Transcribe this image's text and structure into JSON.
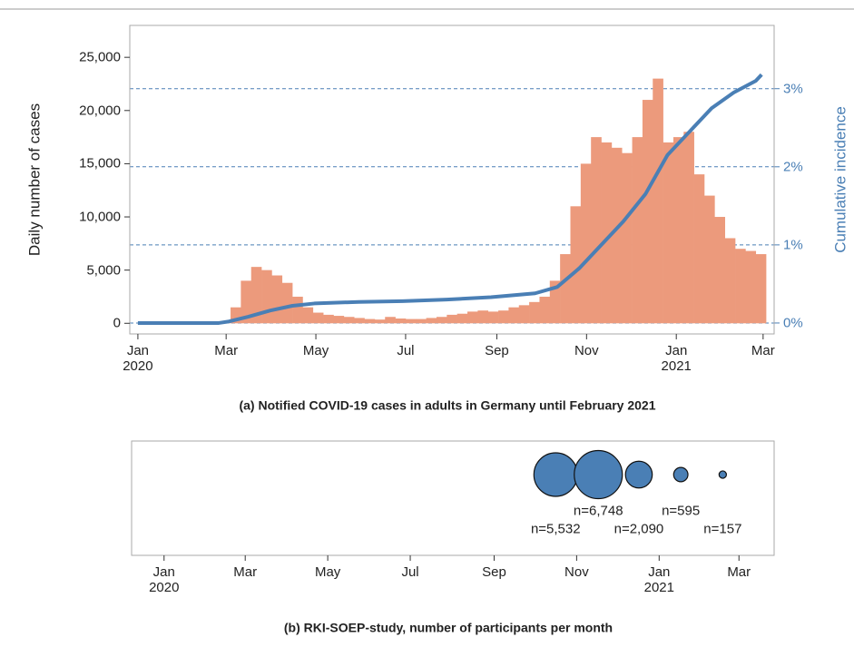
{
  "chart_data": [
    {
      "type": "histogram",
      "title": "(a) Notified COVID-19 cases in adults in Germany until February 2021",
      "y_label": "Daily number of cases",
      "y2_label": "Cumulative incidence",
      "color": "#ec9a7c",
      "bins": [
        0,
        7,
        14,
        21,
        28,
        35,
        42,
        49,
        56,
        63,
        70,
        77,
        84,
        91,
        98,
        105,
        112,
        119,
        126,
        133,
        140,
        147,
        154,
        161,
        168,
        175,
        182,
        189,
        196,
        203,
        210,
        217,
        224,
        231,
        238,
        245,
        252,
        259,
        266,
        273,
        280,
        287,
        294,
        301,
        308,
        315,
        322,
        329,
        336,
        343,
        350,
        357,
        364,
        371,
        378,
        385,
        392,
        399,
        406,
        413,
        420,
        427
      ],
      "counts": [
        0,
        0,
        0,
        0,
        0,
        0,
        0,
        0,
        200,
        1500,
        4000,
        5300,
        5000,
        4500,
        3800,
        2500,
        1500,
        1000,
        800,
        700,
        600,
        500,
        400,
        350,
        600,
        450,
        400,
        400,
        500,
        600,
        800,
        900,
        1100,
        1200,
        1100,
        1200,
        1500,
        1700,
        2000,
        2500,
        4000,
        6500,
        11000,
        15000,
        17500,
        17000,
        16500,
        16000,
        17500,
        21000,
        23000,
        17000,
        17500,
        18000,
        14000,
        12000,
        10000,
        8000,
        7000,
        6800,
        6500
      ],
      "line": {
        "color": "#4a7fb5",
        "axis": "y2",
        "x": [
          0,
          55,
          62,
          75,
          90,
          105,
          120,
          150,
          180,
          210,
          240,
          270,
          285,
          300,
          315,
          330,
          345,
          360,
          375,
          390,
          405,
          420,
          424
        ],
        "values": [
          0,
          0,
          0.02,
          0.08,
          0.16,
          0.22,
          0.25,
          0.27,
          0.28,
          0.3,
          0.33,
          0.38,
          0.46,
          0.7,
          1.0,
          1.3,
          1.65,
          2.15,
          2.45,
          2.75,
          2.95,
          3.1,
          3.18
        ]
      },
      "xlim": [
        -5.5,
        432.5
      ],
      "xticks": [
        {
          "value": 0,
          "label": "Jan\n2020"
        },
        {
          "value": 60,
          "label": "Mar"
        },
        {
          "value": 121,
          "label": "May"
        },
        {
          "value": 182,
          "label": "Jul"
        },
        {
          "value": 244,
          "label": "Sep"
        },
        {
          "value": 305,
          "label": "Nov"
        },
        {
          "value": 366,
          "label": "Jan\n2021"
        },
        {
          "value": 425,
          "label": "Mar"
        }
      ],
      "ylim": [
        -1000,
        28000
      ],
      "yticks": [
        0,
        {
          "value": 5000,
          "label": "5,000"
        },
        {
          "value": 10000,
          "label": "10,000"
        },
        {
          "value": 15000,
          "label": "15,000"
        },
        {
          "value": 20000,
          "label": "20,000"
        },
        {
          "value": 25000,
          "label": "25,000"
        }
      ],
      "y2lim": [
        -0.14,
        3.81
      ],
      "y2ticks": [
        {
          "value": 0,
          "label": "0%"
        },
        {
          "value": 1,
          "label": "1%"
        },
        {
          "value": 2,
          "label": "2%"
        },
        {
          "value": 3,
          "label": "3%"
        }
      ],
      "grid": true
    },
    {
      "type": "bubble",
      "title": "(b) RKI-SOEP-study, number of participants per month",
      "color": "#4a7fb5",
      "x": [
        289.5,
        321,
        351,
        382,
        413
      ],
      "sizes": [
        5532,
        6748,
        2090,
        595,
        157
      ],
      "value_labels": [
        "n=5,532",
        "n=6,748",
        "n=2,090",
        "n=595",
        "n=157"
      ],
      "xlim": [
        -24,
        451
      ],
      "xticks": [
        {
          "value": 0,
          "label": "Jan\n2020"
        },
        {
          "value": 60,
          "label": "Mar"
        },
        {
          "value": 121,
          "label": "May"
        },
        {
          "value": 182,
          "label": "Jul"
        },
        {
          "value": 244,
          "label": "Sep"
        },
        {
          "value": 305,
          "label": "Nov"
        },
        {
          "value": 366,
          "label": "Jan\n2021"
        },
        {
          "value": 425,
          "label": "Mar"
        }
      ]
    }
  ]
}
